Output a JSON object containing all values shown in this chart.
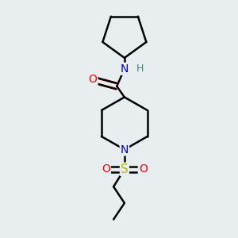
{
  "background_color": "#e8edf0",
  "line_color": "#000000",
  "bond_width": 1.8,
  "atom_colors": {
    "O": "#ff0000",
    "N": "#0000cc",
    "S": "#bbbb00",
    "H": "#3d8080",
    "C": "#000000"
  },
  "font_size_atoms": 10,
  "font_size_H": 9
}
